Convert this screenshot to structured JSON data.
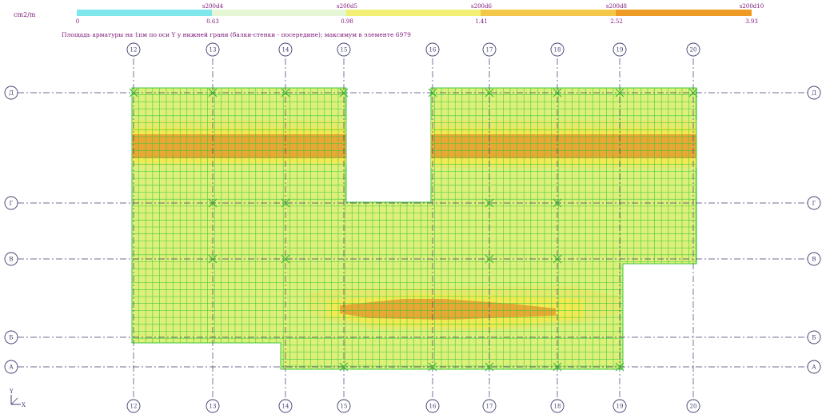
{
  "legend": {
    "unit": "cm2/m",
    "segments": [
      {
        "top_label": "s200d4",
        "start": "0",
        "color": "#7fe6ea"
      },
      {
        "top_label": "s200d5",
        "start": "0.63",
        "color": "#e6f7d6"
      },
      {
        "top_label": "s200d6",
        "start": "0.98",
        "color": "#f3ef74"
      },
      {
        "top_label": "s200d8",
        "start": "1.41",
        "color": "#f3c84a"
      },
      {
        "top_label": "s200d10",
        "start": "2.52",
        "color": "#ee9b25"
      }
    ],
    "end_value": "3.93"
  },
  "caption": "Площадь арматуры на 1пм по оси Y у нижней грани (балки-стенки - посередине); максимум в элементе 6979",
  "axes": {
    "vertical": [
      "12",
      "13",
      "14",
      "15",
      "16",
      "17",
      "18",
      "19",
      "20"
    ],
    "horizontal": [
      "Д",
      "Г",
      "В",
      "Б",
      "А"
    ]
  },
  "coord_axes": {
    "x": "X",
    "y": "Y"
  },
  "colors": {
    "mesh_fill": "#dcf07a",
    "mesh_lines": "#3cc83c",
    "band_yellow": "#f2ea50",
    "band_orange": "#e8a030",
    "band_light": "#e6e96a",
    "axis_text": "#7a1478",
    "axis_line": "#3c3c6e"
  }
}
